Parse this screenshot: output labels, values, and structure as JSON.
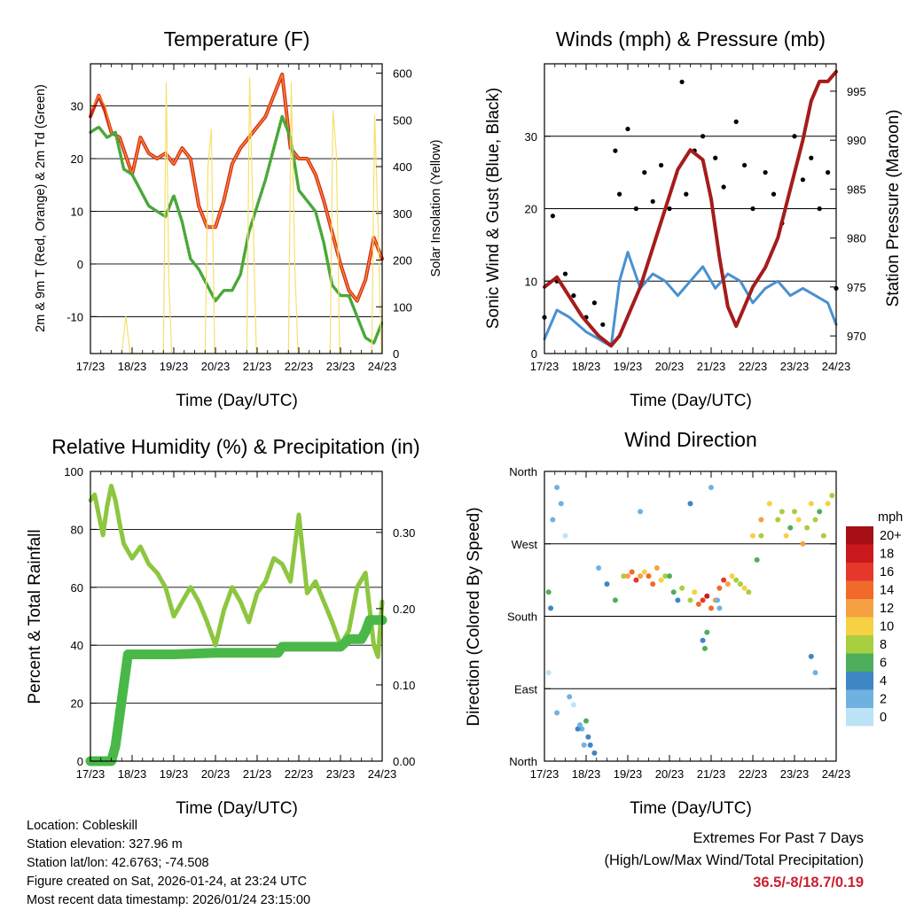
{
  "x_ticks": [
    "17/23",
    "18/23",
    "19/23",
    "20/23",
    "21/23",
    "22/23",
    "23/23",
    "24/23"
  ],
  "chart_data": [
    {
      "id": "temperature",
      "type": "line",
      "title": "Temperature (F)",
      "xlabel": "Time (Day/UTC)",
      "ylabel": "2m & 9m T (Red, Orange) & 2m Td (Green)",
      "y2label": "Solar Insolation (Yellow)",
      "x_unit": "days since 17/23",
      "xlim": [
        0,
        7
      ],
      "ylim": [
        -17,
        38
      ],
      "y_ticks": [
        -10,
        0,
        10,
        20,
        30
      ],
      "y2lim": [
        0,
        620
      ],
      "y2_ticks": [
        0,
        100,
        200,
        300,
        400,
        500,
        600
      ],
      "gridlines_at": [
        -10,
        0,
        10,
        20,
        30
      ],
      "series": [
        {
          "name": "2m T",
          "color": "#d62a20",
          "x": [
            0,
            0.2,
            0.35,
            0.5,
            0.7,
            1.0,
            1.2,
            1.4,
            1.6,
            1.8,
            2.0,
            2.2,
            2.4,
            2.6,
            2.8,
            3.0,
            3.2,
            3.4,
            3.6,
            3.8,
            4.0,
            4.2,
            4.4,
            4.6,
            4.8,
            5.0,
            5.2,
            5.4,
            5.6,
            5.8,
            6.0,
            6.2,
            6.4,
            6.6,
            6.8,
            7.0
          ],
          "y": [
            28,
            32,
            29,
            25,
            24,
            17,
            24,
            21,
            20,
            21,
            19,
            22,
            20,
            11,
            7,
            7,
            12,
            19,
            22,
            24,
            26,
            28,
            32,
            36,
            22,
            20,
            20,
            17,
            12,
            6,
            0,
            -5,
            -7,
            -3,
            5,
            1
          ]
        },
        {
          "name": "9m T",
          "color": "#f28c28",
          "x": [
            0,
            0.2,
            0.35,
            0.5,
            0.7,
            1.0,
            1.2,
            1.4,
            1.6,
            1.8,
            2.0,
            2.2,
            2.4,
            2.6,
            2.8,
            3.0,
            3.2,
            3.4,
            3.6,
            3.8,
            4.0,
            4.2,
            4.4,
            4.6,
            4.8,
            5.0,
            5.2,
            5.4,
            5.6,
            5.8,
            6.0,
            6.2,
            6.4,
            6.6,
            6.8,
            7.0
          ],
          "y": [
            29,
            32,
            30,
            25,
            24,
            17,
            24,
            21,
            20,
            21,
            19,
            22,
            20,
            11,
            7,
            7,
            12,
            19,
            22,
            24,
            26,
            28,
            32,
            36,
            22,
            20,
            20,
            17,
            12,
            6,
            0,
            -5,
            -7,
            -3,
            5,
            1
          ]
        },
        {
          "name": "2m Td",
          "color": "#4aa83a",
          "x": [
            0,
            0.2,
            0.4,
            0.6,
            0.8,
            1.0,
            1.2,
            1.4,
            1.6,
            1.8,
            2.0,
            2.2,
            2.4,
            2.6,
            2.8,
            3.0,
            3.2,
            3.4,
            3.6,
            3.8,
            4.0,
            4.2,
            4.4,
            4.6,
            4.8,
            5.0,
            5.2,
            5.4,
            5.6,
            5.8,
            6.0,
            6.2,
            6.4,
            6.6,
            6.8,
            7.0
          ],
          "y": [
            25,
            26,
            24,
            25,
            18,
            17,
            14,
            11,
            10,
            9,
            13,
            8,
            1,
            -1,
            -4,
            -7,
            -5,
            -5,
            -2,
            6,
            11,
            16,
            22,
            28,
            24,
            14,
            12,
            10,
            4,
            -4,
            -6,
            -6,
            -10,
            -14,
            -15,
            -11
          ]
        },
        {
          "name": "Solar Insolation",
          "color": "#f7e06b",
          "axis": "y2",
          "x": [
            0.75,
            0.85,
            0.95,
            1.75,
            1.82,
            1.88,
            1.95,
            2.75,
            2.82,
            2.9,
            2.98,
            3.75,
            3.82,
            3.9,
            3.98,
            4.75,
            4.82,
            4.9,
            4.98,
            5.75,
            5.82,
            5.9,
            5.98,
            6.75,
            6.82,
            6.9,
            6.98
          ],
          "y": [
            0,
            80,
            0,
            0,
            580,
            150,
            0,
            0,
            400,
            480,
            0,
            0,
            590,
            300,
            0,
            0,
            580,
            200,
            0,
            0,
            520,
            430,
            0,
            0,
            510,
            280,
            0
          ]
        }
      ]
    },
    {
      "id": "winds",
      "type": "line",
      "title": "Winds (mph) & Pressure (mb)",
      "xlabel": "Time (Day/UTC)",
      "ylabel": "Sonic Wind & Gust (Blue, Black)",
      "y2label": "Station Pressure (Maroon)",
      "x_unit": "days since 17/23",
      "xlim": [
        0,
        7
      ],
      "ylim": [
        0,
        40
      ],
      "y_ticks": [
        0,
        10,
        20,
        30
      ],
      "y2lim": [
        968.2,
        997.8
      ],
      "y2_ticks": [
        970,
        975,
        980,
        985,
        990,
        995
      ],
      "gridlines_at": [
        10,
        20,
        30
      ],
      "series": [
        {
          "name": "Sonic Wind",
          "color": "#4a90d0",
          "x": [
            0,
            0.3,
            0.6,
            1.0,
            1.3,
            1.6,
            1.8,
            2.0,
            2.3,
            2.6,
            2.9,
            3.2,
            3.5,
            3.8,
            4.1,
            4.4,
            4.7,
            5.0,
            5.3,
            5.6,
            5.9,
            6.2,
            6.5,
            6.8,
            7.0
          ],
          "y": [
            2,
            6,
            5,
            3,
            2,
            1,
            10,
            14,
            9,
            11,
            10,
            8,
            10,
            12,
            9,
            11,
            10,
            7,
            9,
            10,
            8,
            9,
            8,
            7,
            4
          ]
        },
        {
          "name": "Gust",
          "color": "#000000",
          "marker": "dot",
          "x": [
            0,
            0.2,
            0.3,
            0.5,
            0.7,
            1.0,
            1.2,
            1.4,
            1.7,
            1.8,
            2.0,
            2.2,
            2.4,
            2.6,
            2.8,
            3.0,
            3.3,
            3.4,
            3.6,
            3.8,
            4.1,
            4.3,
            4.6,
            4.8,
            5.0,
            5.3,
            5.5,
            5.7,
            6.0,
            6.2,
            6.4,
            6.6,
            6.8,
            7.0
          ],
          "y": [
            5,
            19,
            10,
            11,
            8,
            5,
            7,
            4,
            28,
            22,
            31,
            20,
            25,
            21,
            26,
            20,
            37.5,
            22,
            28,
            30,
            27,
            23,
            32,
            26,
            20,
            25,
            22,
            18,
            30,
            24,
            27,
            20,
            25,
            9
          ]
        },
        {
          "name": "Station Pressure",
          "color": "#a51c1c",
          "axis": "y2",
          "x": [
            0,
            0.3,
            0.6,
            0.9,
            1.1,
            1.3,
            1.6,
            1.8,
            2.0,
            2.3,
            2.6,
            2.9,
            3.2,
            3.5,
            3.8,
            4.0,
            4.2,
            4.4,
            4.6,
            4.8,
            5.0,
            5.3,
            5.6,
            5.9,
            6.2,
            6.4,
            6.6,
            6.8,
            7.0
          ],
          "y": [
            975,
            976,
            974,
            972,
            971,
            970,
            969,
            970,
            972,
            975,
            979,
            983,
            987,
            989,
            988,
            984,
            978,
            973,
            971,
            973,
            975,
            977,
            980,
            985,
            990,
            994,
            996,
            996,
            997
          ]
        }
      ]
    },
    {
      "id": "humidity",
      "type": "line",
      "title": "Relative Humidity (%) & Precipitation (in)",
      "xlabel": "Time (Day/UTC)",
      "ylabel": "Percent & Total Rainfall",
      "x_unit": "days since 17/23",
      "xlim": [
        0,
        7
      ],
      "ylim": [
        0,
        100
      ],
      "y_ticks": [
        0,
        20,
        40,
        60,
        80,
        100
      ],
      "y2lim": [
        0,
        0.38
      ],
      "y2_ticks": [
        "0.00",
        "0.10",
        "0.20",
        "0.30"
      ],
      "gridlines_at": [
        20,
        40,
        60,
        80
      ],
      "series": [
        {
          "name": "Relative Humidity",
          "color": "#8dc63f",
          "x": [
            0,
            0.1,
            0.2,
            0.3,
            0.4,
            0.5,
            0.6,
            0.7,
            0.8,
            1.0,
            1.2,
            1.4,
            1.6,
            1.8,
            2.0,
            2.2,
            2.4,
            2.6,
            2.8,
            3.0,
            3.2,
            3.4,
            3.6,
            3.8,
            4.0,
            4.2,
            4.4,
            4.6,
            4.8,
            5.0,
            5.2,
            5.4,
            5.6,
            5.8,
            6.0,
            6.2,
            6.4,
            6.6,
            6.8,
            6.9,
            7.0
          ],
          "y": [
            90,
            92,
            85,
            78,
            88,
            95,
            90,
            82,
            75,
            70,
            74,
            68,
            65,
            60,
            50,
            55,
            60,
            55,
            48,
            40,
            52,
            60,
            55,
            48,
            58,
            62,
            70,
            68,
            62,
            85,
            58,
            62,
            55,
            48,
            40,
            45,
            60,
            65,
            40,
            36,
            55
          ]
        },
        {
          "name": "Total Precipitation",
          "color": "#4ab849",
          "axis": "y2",
          "x": [
            0,
            0.5,
            0.6,
            0.7,
            0.8,
            0.9,
            1.0,
            2.0,
            3.0,
            4.0,
            4.5,
            4.6,
            5.0,
            5.5,
            6.0,
            6.2,
            6.3,
            6.5,
            6.6,
            6.7,
            7.0
          ],
          "y": [
            0,
            0,
            0.02,
            0.06,
            0.1,
            0.14,
            0.14,
            0.14,
            0.142,
            0.142,
            0.142,
            0.15,
            0.15,
            0.15,
            0.15,
            0.16,
            0.16,
            0.16,
            0.17,
            0.185,
            0.185
          ]
        }
      ]
    },
    {
      "id": "wind_direction",
      "type": "scatter",
      "title": "Wind Direction",
      "xlabel": "Time (Day/UTC)",
      "ylabel": "Direction (Colored By Speed)",
      "x_unit": "days since 17/23",
      "xlim": [
        0,
        7
      ],
      "ylim": [
        0,
        360
      ],
      "y_ticks": [
        {
          "v": 0,
          "label": "North"
        },
        {
          "v": 90,
          "label": "East"
        },
        {
          "v": 180,
          "label": "South"
        },
        {
          "v": 270,
          "label": "West"
        },
        {
          "v": 360,
          "label": "North"
        }
      ],
      "gridlines_at": [
        90,
        180,
        270
      ],
      "colorbar": {
        "unit": "mph",
        "labels": [
          "20+",
          "18",
          "16",
          "14",
          "12",
          "10",
          "8",
          "6",
          "4",
          "2",
          "0"
        ],
        "colors": [
          "#a50f15",
          "#cb181d",
          "#e6372c",
          "#f26a2b",
          "#f5a142",
          "#f7d044",
          "#a8cf3f",
          "#4fae5c",
          "#3f86c4",
          "#6fb2e2",
          "#bde3f6"
        ]
      },
      "series": [
        {
          "name": "direction",
          "x": [
            0.1,
            0.15,
            0.2,
            0.3,
            0.4,
            0.5,
            0.7,
            0.9,
            1.1,
            1.2,
            0.1,
            0.3,
            0.6,
            0.8,
            1.0,
            1.3,
            1.5,
            1.7,
            1.9,
            2.0,
            2.1,
            2.2,
            2.3,
            2.4,
            2.5,
            2.6,
            2.7,
            2.8,
            2.9,
            3.0,
            3.1,
            3.2,
            3.3,
            3.5,
            3.6,
            3.7,
            3.8,
            3.9,
            4.0,
            4.1,
            4.2,
            4.3,
            4.4,
            4.5,
            4.6,
            4.7,
            4.8,
            4.9,
            5.0,
            5.2,
            5.4,
            5.6,
            5.7,
            5.8,
            5.9,
            6.0,
            6.1,
            6.2,
            6.3,
            6.4,
            6.5,
            6.6,
            6.7,
            6.8,
            6.9,
            1.05,
            0.95,
            0.85,
            3.8,
            3.85,
            3.9,
            4.15,
            4.2,
            6.4,
            6.5,
            5.2,
            5.1,
            4.0,
            3.5,
            2.3
          ],
          "y": [
            210,
            190,
            300,
            340,
            320,
            280,
            70,
            40,
            20,
            10,
            110,
            60,
            80,
            40,
            50,
            240,
            220,
            200,
            230,
            230,
            235,
            225,
            230,
            235,
            230,
            220,
            240,
            225,
            230,
            230,
            210,
            200,
            215,
            200,
            210,
            195,
            200,
            205,
            190,
            200,
            215,
            225,
            220,
            230,
            225,
            220,
            215,
            210,
            280,
            300,
            320,
            300,
            310,
            280,
            290,
            310,
            300,
            270,
            290,
            320,
            300,
            310,
            280,
            320,
            330,
            30,
            20,
            45,
            150,
            140,
            160,
            200,
            190,
            130,
            110,
            280,
            250,
            340,
            320,
            310
          ],
          "speed": [
            6,
            4,
            3,
            2,
            3,
            1,
            1,
            2,
            4,
            5,
            1,
            2,
            3,
            4,
            6,
            2,
            4,
            7,
            9,
            12,
            14,
            16,
            13,
            11,
            14,
            15,
            12,
            10,
            9,
            6,
            7,
            5,
            8,
            9,
            10,
            14,
            16,
            18,
            15,
            12,
            14,
            16,
            13,
            11,
            9,
            8,
            10,
            8,
            10,
            12,
            11,
            9,
            8,
            10,
            7,
            8,
            11,
            12,
            9,
            10,
            8,
            7,
            9,
            11,
            8,
            4,
            3,
            2,
            5,
            6,
            7,
            3,
            2,
            4,
            3,
            9,
            7,
            2,
            5,
            3
          ]
        }
      ]
    }
  ],
  "meta": {
    "location": "Location: Cobleskill",
    "elevation": "Station elevation: 327.96 m",
    "latlon": "Station lat/lon: 42.6763; -74.508",
    "created": "Figure created on Sat, 2026-01-24, at 23:24 UTC",
    "recent": "Most recent data timestamp: 2026/01/24 23:15:00"
  },
  "extremes": {
    "title": "Extremes For Past 7 Days",
    "subtitle": "(High/Low/Max Wind/Total Precipitation)",
    "values": "36.5/-8/18.7/0.19"
  }
}
